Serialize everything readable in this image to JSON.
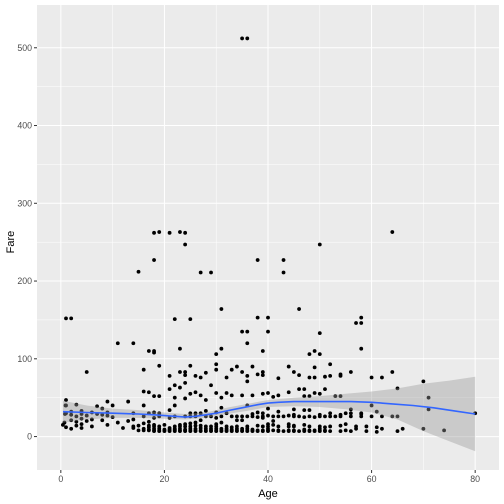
{
  "chart_data": {
    "type": "scatter",
    "xlabel": "Age",
    "ylabel": "Fare",
    "xlim": [
      -4.6,
      84.6
    ],
    "ylim": [
      -43,
      555
    ],
    "x_ticks": [
      0,
      20,
      40,
      60,
      80
    ],
    "y_ticks": [
      0,
      100,
      200,
      300,
      400,
      500
    ],
    "x_minor_ticks": [
      10,
      30,
      50,
      70
    ],
    "y_minor_ticks": [
      50,
      150,
      250,
      350,
      450
    ],
    "grid": true,
    "legend": "none",
    "colors": {
      "panel": "#ebebeb",
      "grid": "#ffffff",
      "points": "#000000",
      "smooth_line": "#3366ff",
      "ribbon": "#999999"
    },
    "points": [
      [
        0.4,
        15
      ],
      [
        0.7,
        18
      ],
      [
        0.8,
        29
      ],
      [
        0.9,
        40
      ],
      [
        1,
        12
      ],
      [
        1,
        30
      ],
      [
        1,
        40
      ],
      [
        1,
        47
      ],
      [
        1,
        152
      ],
      [
        2,
        10
      ],
      [
        2,
        21
      ],
      [
        2,
        28
      ],
      [
        2,
        32
      ],
      [
        2,
        152
      ],
      [
        3,
        14
      ],
      [
        3,
        19
      ],
      [
        3,
        26
      ],
      [
        3,
        41
      ],
      [
        4,
        11
      ],
      [
        4,
        16
      ],
      [
        4,
        23
      ],
      [
        4,
        29
      ],
      [
        4,
        33
      ],
      [
        5,
        20
      ],
      [
        5,
        27
      ],
      [
        5,
        83
      ],
      [
        6,
        13
      ],
      [
        6,
        22
      ],
      [
        6,
        31
      ],
      [
        7,
        29
      ],
      [
        7,
        39
      ],
      [
        8,
        21
      ],
      [
        8,
        28
      ],
      [
        8,
        36
      ],
      [
        9,
        15
      ],
      [
        9,
        27
      ],
      [
        9,
        31
      ],
      [
        9,
        45
      ],
      [
        10,
        25
      ],
      [
        10,
        40
      ],
      [
        11,
        18
      ],
      [
        11,
        120
      ],
      [
        12,
        11
      ],
      [
        13,
        20
      ],
      [
        13,
        45
      ],
      [
        14,
        11
      ],
      [
        14,
        13
      ],
      [
        14,
        22
      ],
      [
        14,
        30
      ],
      [
        14,
        120
      ],
      [
        15,
        8
      ],
      [
        15,
        14
      ],
      [
        15,
        212
      ],
      [
        16,
        8
      ],
      [
        16,
        10
      ],
      [
        16,
        17
      ],
      [
        16,
        26
      ],
      [
        16,
        40
      ],
      [
        16,
        58
      ],
      [
        16,
        86
      ],
      [
        17,
        8
      ],
      [
        17,
        9
      ],
      [
        17,
        12
      ],
      [
        17,
        14
      ],
      [
        17,
        19
      ],
      [
        17,
        30
      ],
      [
        17,
        57
      ],
      [
        17,
        110
      ],
      [
        18,
        7
      ],
      [
        18,
        8
      ],
      [
        18,
        10
      ],
      [
        18,
        13
      ],
      [
        18,
        15
      ],
      [
        18,
        24
      ],
      [
        18,
        31
      ],
      [
        18,
        52
      ],
      [
        18,
        108
      ],
      [
        18,
        110
      ],
      [
        18,
        227
      ],
      [
        18,
        262
      ],
      [
        19,
        7
      ],
      [
        19,
        8
      ],
      [
        19,
        10
      ],
      [
        19,
        13
      ],
      [
        19,
        26
      ],
      [
        19,
        30
      ],
      [
        19,
        52
      ],
      [
        19,
        91
      ],
      [
        19,
        263
      ],
      [
        20,
        7
      ],
      [
        20,
        8
      ],
      [
        20,
        9
      ],
      [
        20,
        15
      ],
      [
        21,
        7
      ],
      [
        21,
        8
      ],
      [
        21,
        9
      ],
      [
        21,
        11
      ],
      [
        21,
        24
      ],
      [
        21,
        34
      ],
      [
        21,
        61
      ],
      [
        21,
        78
      ],
      [
        21,
        262
      ],
      [
        22,
        7
      ],
      [
        22,
        8
      ],
      [
        22,
        9
      ],
      [
        22,
        10
      ],
      [
        22,
        13
      ],
      [
        22,
        26
      ],
      [
        22,
        40
      ],
      [
        22,
        50
      ],
      [
        22,
        66
      ],
      [
        22,
        151
      ],
      [
        23,
        7
      ],
      [
        23,
        8
      ],
      [
        23,
        10
      ],
      [
        23,
        13
      ],
      [
        23,
        15
      ],
      [
        23,
        63
      ],
      [
        23,
        83
      ],
      [
        23,
        113
      ],
      [
        23,
        263
      ],
      [
        24,
        7
      ],
      [
        24,
        8
      ],
      [
        24,
        9
      ],
      [
        24,
        13
      ],
      [
        24,
        16
      ],
      [
        24,
        26
      ],
      [
        24,
        49
      ],
      [
        24,
        69
      ],
      [
        24,
        79
      ],
      [
        24,
        83
      ],
      [
        24,
        247
      ],
      [
        24,
        262
      ],
      [
        25,
        7
      ],
      [
        25,
        8
      ],
      [
        25,
        10
      ],
      [
        25,
        13
      ],
      [
        25,
        17
      ],
      [
        25,
        26
      ],
      [
        25,
        30
      ],
      [
        25,
        55
      ],
      [
        25,
        91
      ],
      [
        25,
        151
      ],
      [
        26,
        7
      ],
      [
        26,
        8
      ],
      [
        26,
        10
      ],
      [
        26,
        14
      ],
      [
        26,
        18
      ],
      [
        26,
        26
      ],
      [
        26,
        30
      ],
      [
        26,
        57
      ],
      [
        26,
        78
      ],
      [
        27,
        7
      ],
      [
        27,
        8
      ],
      [
        27,
        11
      ],
      [
        27,
        14
      ],
      [
        27,
        21
      ],
      [
        27,
        30
      ],
      [
        27,
        53
      ],
      [
        27,
        76
      ],
      [
        27,
        211
      ],
      [
        28,
        7
      ],
      [
        28,
        8
      ],
      [
        28,
        10
      ],
      [
        28,
        13
      ],
      [
        28,
        26
      ],
      [
        28,
        33
      ],
      [
        28,
        47
      ],
      [
        28,
        82
      ],
      [
        29,
        7
      ],
      [
        29,
        8
      ],
      [
        29,
        10
      ],
      [
        29,
        13
      ],
      [
        29,
        26
      ],
      [
        29,
        66
      ],
      [
        29,
        211
      ],
      [
        30,
        7
      ],
      [
        30,
        8
      ],
      [
        30,
        10
      ],
      [
        30,
        13
      ],
      [
        30,
        16
      ],
      [
        30,
        24
      ],
      [
        30,
        31
      ],
      [
        30,
        56
      ],
      [
        30,
        86
      ],
      [
        30,
        93
      ],
      [
        30,
        106
      ],
      [
        31,
        7
      ],
      [
        31,
        8
      ],
      [
        31,
        10
      ],
      [
        31,
        18
      ],
      [
        31,
        26
      ],
      [
        31,
        37
      ],
      [
        31,
        50
      ],
      [
        31,
        113
      ],
      [
        31,
        164
      ],
      [
        32,
        7
      ],
      [
        32,
        8
      ],
      [
        32,
        10
      ],
      [
        32,
        13
      ],
      [
        32,
        30
      ],
      [
        32,
        56
      ],
      [
        32,
        76
      ],
      [
        33,
        7
      ],
      [
        33,
        8
      ],
      [
        33,
        9
      ],
      [
        33,
        12
      ],
      [
        33,
        26
      ],
      [
        33,
        53
      ],
      [
        33,
        86
      ],
      [
        34,
        7
      ],
      [
        34,
        8
      ],
      [
        34,
        10
      ],
      [
        34,
        13
      ],
      [
        34,
        21
      ],
      [
        34,
        26
      ],
      [
        34,
        90
      ],
      [
        35,
        7
      ],
      [
        35,
        8
      ],
      [
        35,
        10
      ],
      [
        35,
        21
      ],
      [
        35,
        26
      ],
      [
        35,
        53
      ],
      [
        35,
        83
      ],
      [
        35,
        135
      ],
      [
        35,
        512
      ],
      [
        36,
        7
      ],
      [
        36,
        8
      ],
      [
        36,
        10
      ],
      [
        36,
        13
      ],
      [
        36,
        26
      ],
      [
        36,
        40
      ],
      [
        36,
        71
      ],
      [
        36,
        78
      ],
      [
        36,
        120
      ],
      [
        36,
        135
      ],
      [
        36,
        512
      ],
      [
        37,
        7
      ],
      [
        37,
        8
      ],
      [
        37,
        9
      ],
      [
        37,
        26
      ],
      [
        37,
        29
      ],
      [
        37,
        53
      ],
      [
        37,
        90
      ],
      [
        38,
        7
      ],
      [
        38,
        8
      ],
      [
        38,
        14
      ],
      [
        38,
        25
      ],
      [
        38,
        31
      ],
      [
        38,
        80
      ],
      [
        38,
        153
      ],
      [
        38,
        227
      ],
      [
        39,
        7
      ],
      [
        39,
        8
      ],
      [
        39,
        13
      ],
      [
        39,
        24
      ],
      [
        39,
        26
      ],
      [
        39,
        30
      ],
      [
        39,
        55
      ],
      [
        39,
        79
      ],
      [
        39,
        83
      ],
      [
        39,
        110
      ],
      [
        40,
        7
      ],
      [
        40,
        8
      ],
      [
        40,
        10
      ],
      [
        40,
        13
      ],
      [
        40,
        16
      ],
      [
        40,
        27
      ],
      [
        40,
        36
      ],
      [
        40,
        56
      ],
      [
        40,
        135
      ],
      [
        40,
        153
      ],
      [
        41,
        8
      ],
      [
        41,
        15
      ],
      [
        41,
        20
      ],
      [
        41,
        26
      ],
      [
        41,
        51
      ],
      [
        42,
        7
      ],
      [
        42,
        8
      ],
      [
        42,
        13
      ],
      [
        42,
        26
      ],
      [
        42,
        32
      ],
      [
        42,
        53
      ],
      [
        42,
        75
      ],
      [
        43,
        7
      ],
      [
        43,
        26
      ],
      [
        43,
        211
      ],
      [
        43,
        227
      ],
      [
        44,
        7
      ],
      [
        44,
        8
      ],
      [
        44,
        13
      ],
      [
        44,
        16
      ],
      [
        44,
        27
      ],
      [
        44,
        57
      ],
      [
        44,
        90
      ],
      [
        45,
        7
      ],
      [
        45,
        8
      ],
      [
        45,
        13
      ],
      [
        45,
        14
      ],
      [
        45,
        26
      ],
      [
        45,
        28
      ],
      [
        45,
        35
      ],
      [
        45,
        83
      ],
      [
        46,
        7
      ],
      [
        46,
        26
      ],
      [
        46,
        61
      ],
      [
        46,
        79
      ],
      [
        46,
        164
      ],
      [
        47,
        7
      ],
      [
        47,
        8
      ],
      [
        47,
        9
      ],
      [
        47,
        15
      ],
      [
        47,
        25
      ],
      [
        47,
        34
      ],
      [
        47,
        52
      ],
      [
        47,
        61
      ],
      [
        48,
        7
      ],
      [
        48,
        8
      ],
      [
        48,
        13
      ],
      [
        48,
        26
      ],
      [
        48,
        34
      ],
      [
        48,
        52
      ],
      [
        48,
        76
      ],
      [
        48,
        106
      ],
      [
        49,
        7
      ],
      [
        49,
        8
      ],
      [
        49,
        25
      ],
      [
        49,
        56
      ],
      [
        49,
        76
      ],
      [
        49,
        89
      ],
      [
        49,
        110
      ],
      [
        50,
        7
      ],
      [
        50,
        8
      ],
      [
        50,
        10
      ],
      [
        50,
        13
      ],
      [
        50,
        26
      ],
      [
        50,
        28
      ],
      [
        50,
        55
      ],
      [
        50,
        106
      ],
      [
        50,
        133
      ],
      [
        50,
        247
      ],
      [
        51,
        7
      ],
      [
        51,
        8
      ],
      [
        51,
        12
      ],
      [
        51,
        26
      ],
      [
        51,
        61
      ],
      [
        51,
        77
      ],
      [
        52,
        7
      ],
      [
        52,
        13
      ],
      [
        52,
        26
      ],
      [
        52,
        30
      ],
      [
        52,
        78
      ],
      [
        52,
        93
      ],
      [
        53,
        26
      ],
      [
        53,
        52
      ],
      [
        54,
        7
      ],
      [
        54,
        14
      ],
      [
        54,
        26
      ],
      [
        54,
        28
      ],
      [
        54,
        52
      ],
      [
        54,
        78
      ],
      [
        54,
        80
      ],
      [
        55,
        8
      ],
      [
        55,
        16
      ],
      [
        55,
        30
      ],
      [
        56,
        7
      ],
      [
        56,
        26
      ],
      [
        56,
        30
      ],
      [
        56,
        35
      ],
      [
        56,
        83
      ],
      [
        57,
        10
      ],
      [
        57,
        13
      ],
      [
        57,
        146
      ],
      [
        58,
        26
      ],
      [
        58,
        29
      ],
      [
        58,
        30
      ],
      [
        58,
        113
      ],
      [
        58,
        146
      ],
      [
        58,
        153
      ],
      [
        59,
        7
      ],
      [
        59,
        13
      ],
      [
        60,
        26
      ],
      [
        60,
        40
      ],
      [
        60,
        76
      ],
      [
        61,
        6
      ],
      [
        61,
        12
      ],
      [
        61,
        32
      ],
      [
        62,
        10
      ],
      [
        62,
        26
      ],
      [
        62,
        76
      ],
      [
        64,
        26
      ],
      [
        64,
        83
      ],
      [
        64,
        263
      ],
      [
        65,
        7
      ],
      [
        65,
        26
      ],
      [
        65,
        62
      ],
      [
        66,
        10
      ],
      [
        70,
        10
      ],
      [
        70,
        71
      ],
      [
        71,
        35
      ],
      [
        71,
        50
      ],
      [
        74,
        8
      ],
      [
        80,
        30
      ]
    ],
    "smooth_fit": [
      [
        0.42,
        32
      ],
      [
        5,
        31
      ],
      [
        10,
        30
      ],
      [
        15,
        29
      ],
      [
        18,
        28
      ],
      [
        20,
        27
      ],
      [
        22,
        26
      ],
      [
        24,
        25
      ],
      [
        26,
        26
      ],
      [
        28,
        28
      ],
      [
        30,
        30
      ],
      [
        32,
        33
      ],
      [
        35,
        37
      ],
      [
        38,
        41
      ],
      [
        40,
        43
      ],
      [
        42,
        44
      ],
      [
        45,
        45
      ],
      [
        48,
        45
      ],
      [
        52,
        45
      ],
      [
        56,
        45
      ],
      [
        60,
        44
      ],
      [
        64,
        42
      ],
      [
        68,
        40
      ],
      [
        72,
        37
      ],
      [
        76,
        33
      ],
      [
        80,
        29
      ]
    ],
    "smooth_band": [
      [
        0.42,
        18,
        46
      ],
      [
        5,
        22,
        40
      ],
      [
        10,
        24,
        36
      ],
      [
        15,
        24,
        34
      ],
      [
        20,
        23,
        31
      ],
      [
        24,
        22,
        29
      ],
      [
        28,
        24,
        31
      ],
      [
        32,
        29,
        37
      ],
      [
        36,
        33,
        42
      ],
      [
        40,
        38,
        47
      ],
      [
        45,
        39,
        50
      ],
      [
        50,
        38,
        52
      ],
      [
        55,
        35,
        55
      ],
      [
        60,
        31,
        58
      ],
      [
        65,
        22,
        62
      ],
      [
        70,
        7,
        68
      ],
      [
        75,
        -6,
        72
      ],
      [
        80,
        -19,
        77
      ]
    ]
  }
}
